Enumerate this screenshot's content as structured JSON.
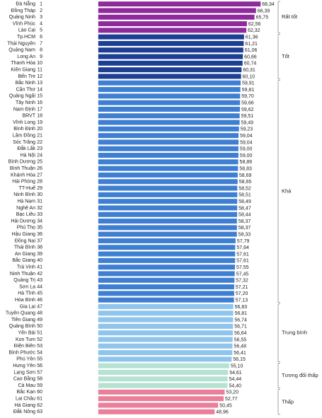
{
  "chart_data": {
    "type": "bar",
    "orientation": "horizontal",
    "xlim": [
      -22,
      76
    ],
    "series": [
      {
        "name": "Rất tốt",
        "color": "#8e2a9c",
        "ranks": [
          1,
          2,
          3,
          4,
          5
        ],
        "categories": [
          "Đà Nẵng",
          "Đồng Tháp",
          "Quảng Ninh",
          "Vĩnh Phúc",
          "Lào Cai"
        ],
        "values": [
          68.34,
          66.39,
          65.75,
          62.56,
          62.32
        ],
        "value_labels": [
          "68,34",
          "66,39",
          "65,75",
          "62,56",
          "62,32"
        ]
      },
      {
        "name": "Tốt",
        "color": "#1c3f94",
        "ranks": [
          6,
          7,
          8,
          9,
          10,
          11,
          12
        ],
        "categories": [
          "Tp.HCM",
          "Thái Nguyên",
          "Quảng Nam",
          "Long An",
          "Thanh Hóa",
          "Kiên Giang",
          "Bến Tre"
        ],
        "values": [
          61.36,
          61.21,
          61.06,
          60.86,
          60.74,
          60.31,
          60.1
        ],
        "value_labels": [
          "61,36",
          "61,21",
          "61,06",
          "60,86",
          "60,74",
          "60,31",
          "60,10"
        ]
      },
      {
        "name": "Khá",
        "color": "#3f7fd2",
        "ranks": [
          13,
          14,
          15,
          16,
          17,
          18,
          19,
          20,
          21,
          22,
          23,
          24,
          25,
          26,
          27,
          28,
          29,
          30,
          31,
          32,
          33,
          34,
          35,
          36,
          37,
          38,
          39,
          40,
          41,
          42,
          43,
          44,
          45,
          46
        ],
        "categories": [
          "Bắc Ninh",
          "Cần Thơ",
          "Quảng Ngãi",
          "Tây Ninh",
          "Nam Định",
          "BRVT",
          "Vĩnh Long",
          "Bình Định",
          "Lâm Đồng",
          "Sóc Trăng",
          "Đắk Lắk",
          "Hà Nội",
          "Bình Dương",
          "Bình Thuận",
          "Khánh Hòa",
          "Hải Phòng",
          "TT-Huế",
          "Ninh Bình",
          "Hà Nam",
          "Nghệ An",
          "Bạc Liêu",
          "Hải Dương",
          "Phú Thọ",
          "Hậu Giang",
          "Đồng Nai",
          "Thái Bình",
          "An Giang",
          "Bắc Giang",
          "Trà Vinh",
          "Ninh Thuận",
          "Quảng Trị",
          "Sơn La",
          "Hà Tĩnh",
          "Hòa Bình"
        ],
        "values": [
          59.91,
          59.81,
          59.7,
          59.66,
          59.62,
          59.51,
          59.49,
          59.23,
          59.04,
          59.04,
          59.0,
          59.0,
          58.89,
          58.83,
          58.69,
          58.65,
          58.52,
          58.51,
          58.49,
          58.47,
          58.44,
          58.37,
          58.37,
          58.33,
          57.79,
          57.64,
          57.61,
          57.61,
          57.55,
          57.45,
          57.32,
          57.21,
          57.2,
          57.13
        ],
        "value_labels": [
          "59,91",
          "59,81",
          "59,70",
          "59,66",
          "59,62",
          "59,51",
          "59,49",
          "59,23",
          "59,04",
          "59,04",
          "59,00",
          "59,00",
          "58,89",
          "58,83",
          "58,69",
          "58,65",
          "58,52",
          "58,51",
          "58,49",
          "58,47",
          "58,44",
          "58,37",
          "58,37",
          "58,33",
          "57,79",
          "57,64",
          "57,61",
          "57,61",
          "57,55",
          "57,45",
          "57,32",
          "57,21",
          "57,20",
          "57,13"
        ]
      },
      {
        "name": "Trung bình",
        "color": "#8fc4ec",
        "ranks": [
          47,
          48,
          49,
          50,
          51,
          52,
          53,
          54,
          55
        ],
        "categories": [
          "Gia Lai",
          "Tuyên Quang",
          "Tiền Giang",
          "Quảng Bình",
          "Yên Bái",
          "Kon Tum",
          "Điện Biên",
          "Bình Phước",
          "Phú Yên"
        ],
        "values": [
          56.83,
          56.81,
          56.74,
          56.71,
          56.64,
          56.55,
          56.48,
          56.41,
          56.15
        ],
        "value_labels": [
          "56,83",
          "56,81",
          "56,74",
          "56,71",
          "56,64",
          "56,55",
          "56,48",
          "56,41",
          "56,15"
        ]
      },
      {
        "name": "Tương đối thấp",
        "color": "#b5e2d2",
        "ranks": [
          56,
          57,
          58,
          59
        ],
        "categories": [
          "Hưng Yên",
          "Lạng Sơn",
          "Cao Bằng",
          "Cà Mau"
        ],
        "values": [
          55.1,
          54.61,
          54.44,
          54.4
        ],
        "value_labels": [
          "55,10",
          "54,61",
          "54,44",
          "54,40"
        ]
      },
      {
        "name": "Thấp",
        "color": "#ea7f99",
        "ranks": [
          60,
          61,
          62,
          63
        ],
        "categories": [
          "Bắc Kạn",
          "Lai Châu",
          "Hà Giang",
          "Đắk Nông"
        ],
        "values": [
          53.2,
          52.77,
          50.45,
          48.96
        ],
        "value_labels": [
          "53,20",
          "52,77",
          "50,45",
          "48,96"
        ]
      }
    ]
  }
}
